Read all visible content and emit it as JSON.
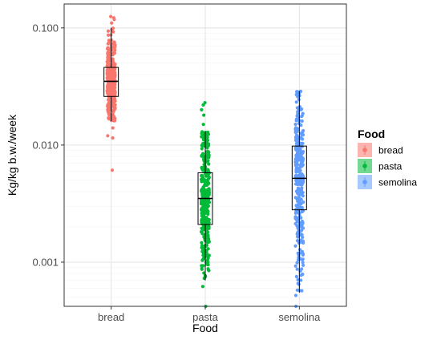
{
  "chart_data": {
    "type": "scatter",
    "subtype": "jittered strip plot with boxplots",
    "xlabel": "Food",
    "ylabel": "Kg/kg b.w./week",
    "y_scale": "log10",
    "ylim": [
      0.00042,
      0.16
    ],
    "y_ticks": [
      0.001,
      0.01,
      0.1
    ],
    "y_tick_labels": [
      "0.001",
      "0.010",
      "0.100"
    ],
    "categories": [
      "bread",
      "pasta",
      "semolina"
    ],
    "grid": true,
    "legend": {
      "title": "Food",
      "position": "right"
    },
    "series": [
      {
        "name": "bread",
        "color": "#F8766D",
        "box": {
          "q1": 0.026,
          "median": 0.035,
          "q3": 0.046,
          "whisker_low": 0.016,
          "whisker_high": 0.1
        },
        "point_range": [
          0.006,
          0.125
        ],
        "outliers": [
          0.0061,
          0.0115,
          0.012,
          0.014,
          0.11,
          0.118,
          0.122,
          0.125
        ]
      },
      {
        "name": "pasta",
        "color": "#00BA38",
        "box": {
          "q1": 0.0021,
          "median": 0.0035,
          "q3": 0.0058,
          "whisker_low": 0.0007,
          "whisker_high": 0.013
        },
        "point_range": [
          0.00042,
          0.023
        ],
        "outliers": [
          0.00042,
          0.00062,
          0.015,
          0.018,
          0.02,
          0.022,
          0.023
        ]
      },
      {
        "name": "semolina",
        "color": "#619CFF",
        "box": {
          "q1": 0.0028,
          "median": 0.0052,
          "q3": 0.0098,
          "whisker_low": 0.00055,
          "whisker_high": 0.029
        },
        "point_range": [
          0.00042,
          0.029
        ],
        "outliers": [
          0.00042,
          0.00052
        ]
      }
    ]
  }
}
